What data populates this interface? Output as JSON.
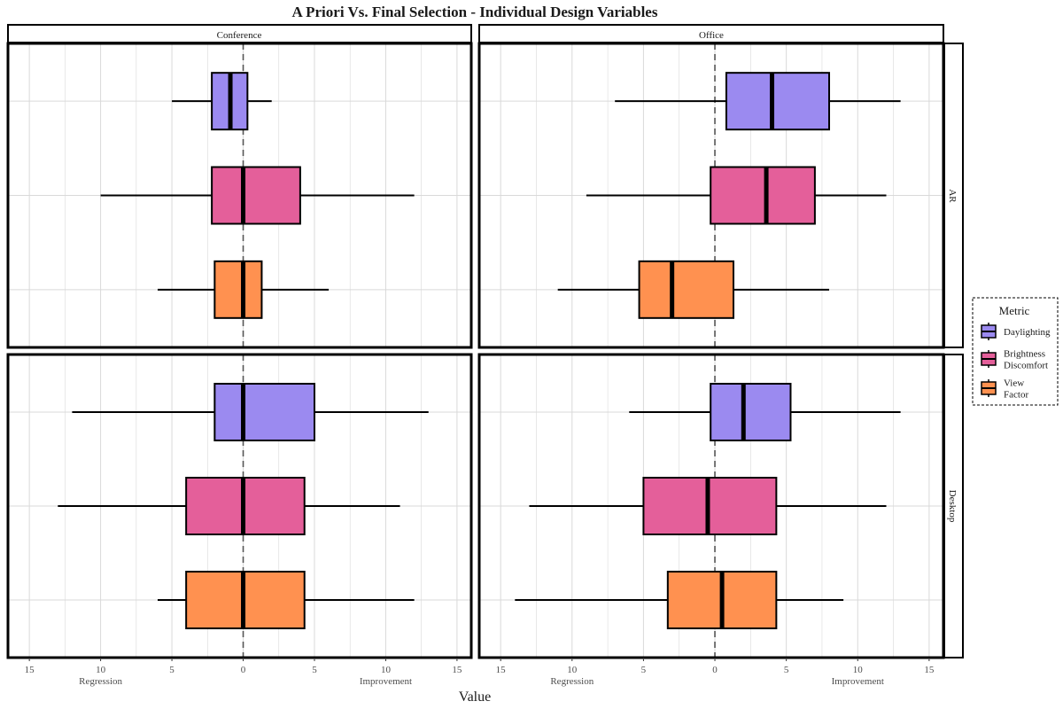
{
  "chart_data": {
    "type": "boxplot",
    "orientation": "horizontal",
    "title": "A Priori Vs. Final Selection - Individual Design Variables",
    "xlabel": "Value",
    "x_ticks": [
      15,
      10,
      5,
      0,
      5,
      10,
      15
    ],
    "x_tick_values": [
      -15,
      -10,
      -5,
      0,
      5,
      10,
      15
    ],
    "x_range": [
      -16.5,
      16
    ],
    "x_notes": {
      "left": "Regression",
      "right": "Improvement"
    },
    "reference_line": {
      "x": 0,
      "style": "dashed"
    },
    "column_facets": [
      "Conference",
      "Office"
    ],
    "row_facets": [
      "AR",
      "Desktop"
    ],
    "legend": {
      "title": "Metric",
      "placement": "right",
      "entries": [
        {
          "label_lines": [
            "Daylighting"
          ],
          "color": "#9b8af0"
        },
        {
          "label_lines": [
            "Brightness",
            "Discomfort"
          ],
          "color": "#e45f9a"
        },
        {
          "label_lines": [
            "View",
            "Factor"
          ],
          "color": "#ff9150"
        }
      ]
    },
    "series_colors": [
      "#9b8af0",
      "#e45f9a",
      "#ff9150"
    ],
    "panels": [
      {
        "column": "Conference",
        "row": "AR",
        "boxes": [
          {
            "metric": "Daylighting",
            "min": -5,
            "q1": -2.2,
            "median": -0.9,
            "q3": 0.3,
            "max": 2
          },
          {
            "metric": "Brightness Discomfort",
            "min": -10,
            "q1": -2.2,
            "median": 0,
            "q3": 4,
            "max": 12
          },
          {
            "metric": "View Factor",
            "min": -6,
            "q1": -2,
            "median": 0,
            "q3": 1.3,
            "max": 6
          }
        ]
      },
      {
        "column": "Office",
        "row": "AR",
        "boxes": [
          {
            "metric": "Daylighting",
            "min": -7,
            "q1": 0.8,
            "median": 4,
            "q3": 8,
            "max": 13
          },
          {
            "metric": "Brightness Discomfort",
            "min": -9,
            "q1": -0.3,
            "median": 3.6,
            "q3": 7,
            "max": 12
          },
          {
            "metric": "View Factor",
            "min": -11,
            "q1": -5.3,
            "median": -3,
            "q3": 1.3,
            "max": 8
          }
        ]
      },
      {
        "column": "Conference",
        "row": "Desktop",
        "boxes": [
          {
            "metric": "Daylighting",
            "min": -12,
            "q1": -2,
            "median": 0,
            "q3": 5,
            "max": 13
          },
          {
            "metric": "Brightness Discomfort",
            "min": -13,
            "q1": -4,
            "median": 0,
            "q3": 4.3,
            "max": 11
          },
          {
            "metric": "View Factor",
            "min": -6,
            "q1": -4,
            "median": 0,
            "q3": 4.3,
            "max": 12
          }
        ]
      },
      {
        "column": "Office",
        "row": "Desktop",
        "boxes": [
          {
            "metric": "Daylighting",
            "min": -6,
            "q1": -0.3,
            "median": 2,
            "q3": 5.3,
            "max": 13
          },
          {
            "metric": "Brightness Discomfort",
            "min": -13,
            "q1": -5,
            "median": -0.5,
            "q3": 4.3,
            "max": 12
          },
          {
            "metric": "View Factor",
            "min": -14,
            "q1": -3.3,
            "median": 0.5,
            "q3": 4.3,
            "max": 9
          }
        ]
      }
    ]
  }
}
